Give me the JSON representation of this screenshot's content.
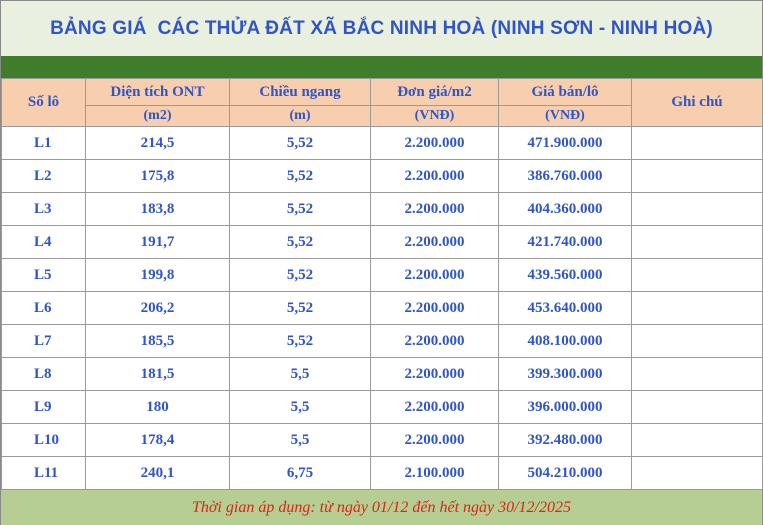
{
  "title": "BẢNG GIÁ  CÁC THỬA ĐẤT XÃ BẮC NINH HOÀ (NINH SƠN - NINH HOÀ)",
  "columns": {
    "lot": "Số lô",
    "area": "Diện tích ONT",
    "area_unit": "(m2)",
    "width": "Chiều ngang",
    "width_unit": "(m)",
    "unit_price": "Đơn giá/m2",
    "unit_price_unit": "(VNĐ)",
    "total_price": "Giá bán/lô",
    "total_price_unit": "(VNĐ)",
    "note": "Ghi chú"
  },
  "rows": [
    {
      "lot": "L1",
      "area": "214,5",
      "width": "5,52",
      "unit_price": "2.200.000",
      "total_price": "471.900.000",
      "note": ""
    },
    {
      "lot": "L2",
      "area": "175,8",
      "width": "5,52",
      "unit_price": "2.200.000",
      "total_price": "386.760.000",
      "note": ""
    },
    {
      "lot": "L3",
      "area": "183,8",
      "width": "5,52",
      "unit_price": "2.200.000",
      "total_price": "404.360.000",
      "note": ""
    },
    {
      "lot": "L4",
      "area": "191,7",
      "width": "5,52",
      "unit_price": "2.200.000",
      "total_price": "421.740.000",
      "note": ""
    },
    {
      "lot": "L5",
      "area": "199,8",
      "width": "5,52",
      "unit_price": "2.200.000",
      "total_price": "439.560.000",
      "note": ""
    },
    {
      "lot": "L6",
      "area": "206,2",
      "width": "5,52",
      "unit_price": "2.200.000",
      "total_price": "453.640.000",
      "note": ""
    },
    {
      "lot": "L7",
      "area": "185,5",
      "width": "5,52",
      "unit_price": "2.200.000",
      "total_price": "408.100.000",
      "note": ""
    },
    {
      "lot": "L8",
      "area": "181,5",
      "width": "5,5",
      "unit_price": "2.200.000",
      "total_price": "399.300.000",
      "note": ""
    },
    {
      "lot": "L9",
      "area": "180",
      "width": "5,5",
      "unit_price": "2.200.000",
      "total_price": "396.000.000",
      "note": ""
    },
    {
      "lot": "L10",
      "area": "178,4",
      "width": "5,5",
      "unit_price": "2.200.000",
      "total_price": "392.480.000",
      "note": ""
    },
    {
      "lot": "L11",
      "area": "240,1",
      "width": "6,75",
      "unit_price": "2.100.000",
      "total_price": "504.210.000",
      "note": ""
    }
  ],
  "footer": "Thời gian áp dụng: từ ngày 01/12 đến hết ngày 30/12/2025",
  "colors": {
    "title_bg": "#eaf0df",
    "title_text": "#2f55c6",
    "band": "#3f7d2a",
    "header_bg": "#f8cfae",
    "footer_bg": "#b6ce93",
    "footer_text": "#d9261c"
  }
}
